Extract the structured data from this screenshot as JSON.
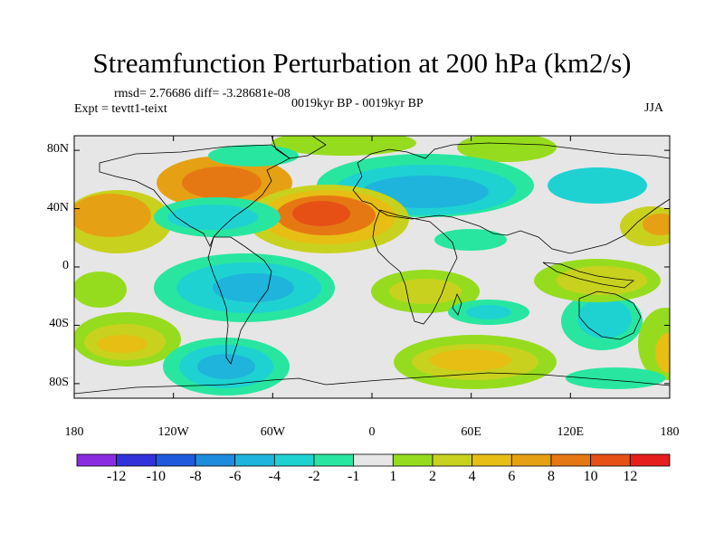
{
  "title": "Streamfunction Perturbation at 200 hPa (km2/s)",
  "stats_line": "rmsd= 2.76686  diff= -3.28681e-08",
  "experiment_label": "Expt = tevtt1-teixt",
  "period_label": "0019kyr BP - 0019kyr BP",
  "season_label": "JJA",
  "lat_ticks": [
    {
      "label": "80N",
      "value": 80
    },
    {
      "label": "40N",
      "value": 40
    },
    {
      "label": "0",
      "value": 0
    },
    {
      "label": "40S",
      "value": -40
    },
    {
      "label": "80S",
      "value": -80
    }
  ],
  "lon_ticks": [
    {
      "label": "180",
      "value": -180
    },
    {
      "label": "120W",
      "value": -120
    },
    {
      "label": "60W",
      "value": -60
    },
    {
      "label": "0",
      "value": 0
    },
    {
      "label": "60E",
      "value": 60
    },
    {
      "label": "120E",
      "value": 120
    },
    {
      "label": "180",
      "value": 180
    }
  ],
  "colorbar": {
    "colors": [
      "#8a2be2",
      "#3232dc",
      "#1e5adc",
      "#1e8cdc",
      "#1eb4dc",
      "#1ed2d2",
      "#28e6a0",
      "#e6e6e6",
      "#96dc1e",
      "#c8d21e",
      "#e6be14",
      "#e6a014",
      "#e67814",
      "#e65014",
      "#e61e1e"
    ],
    "labels": [
      "-12",
      "-10",
      "-8",
      "-6",
      "-4",
      "-2",
      "-1",
      "1",
      "2",
      "4",
      "6",
      "8",
      "10",
      "12"
    ]
  },
  "map_colors": {
    "background": "#e6e6e6",
    "cyan": "#1ed2d2",
    "teal": "#28e6a0",
    "blue_light": "#1eb4dc",
    "blue": "#1e8cdc",
    "lime": "#96dc1e",
    "olive": "#c8d21e",
    "gold": "#e6be14",
    "orange": "#e6a014",
    "dark_orange": "#e67814",
    "red_orange": "#e65014",
    "red": "#e61e1e",
    "coast": "#000000"
  }
}
